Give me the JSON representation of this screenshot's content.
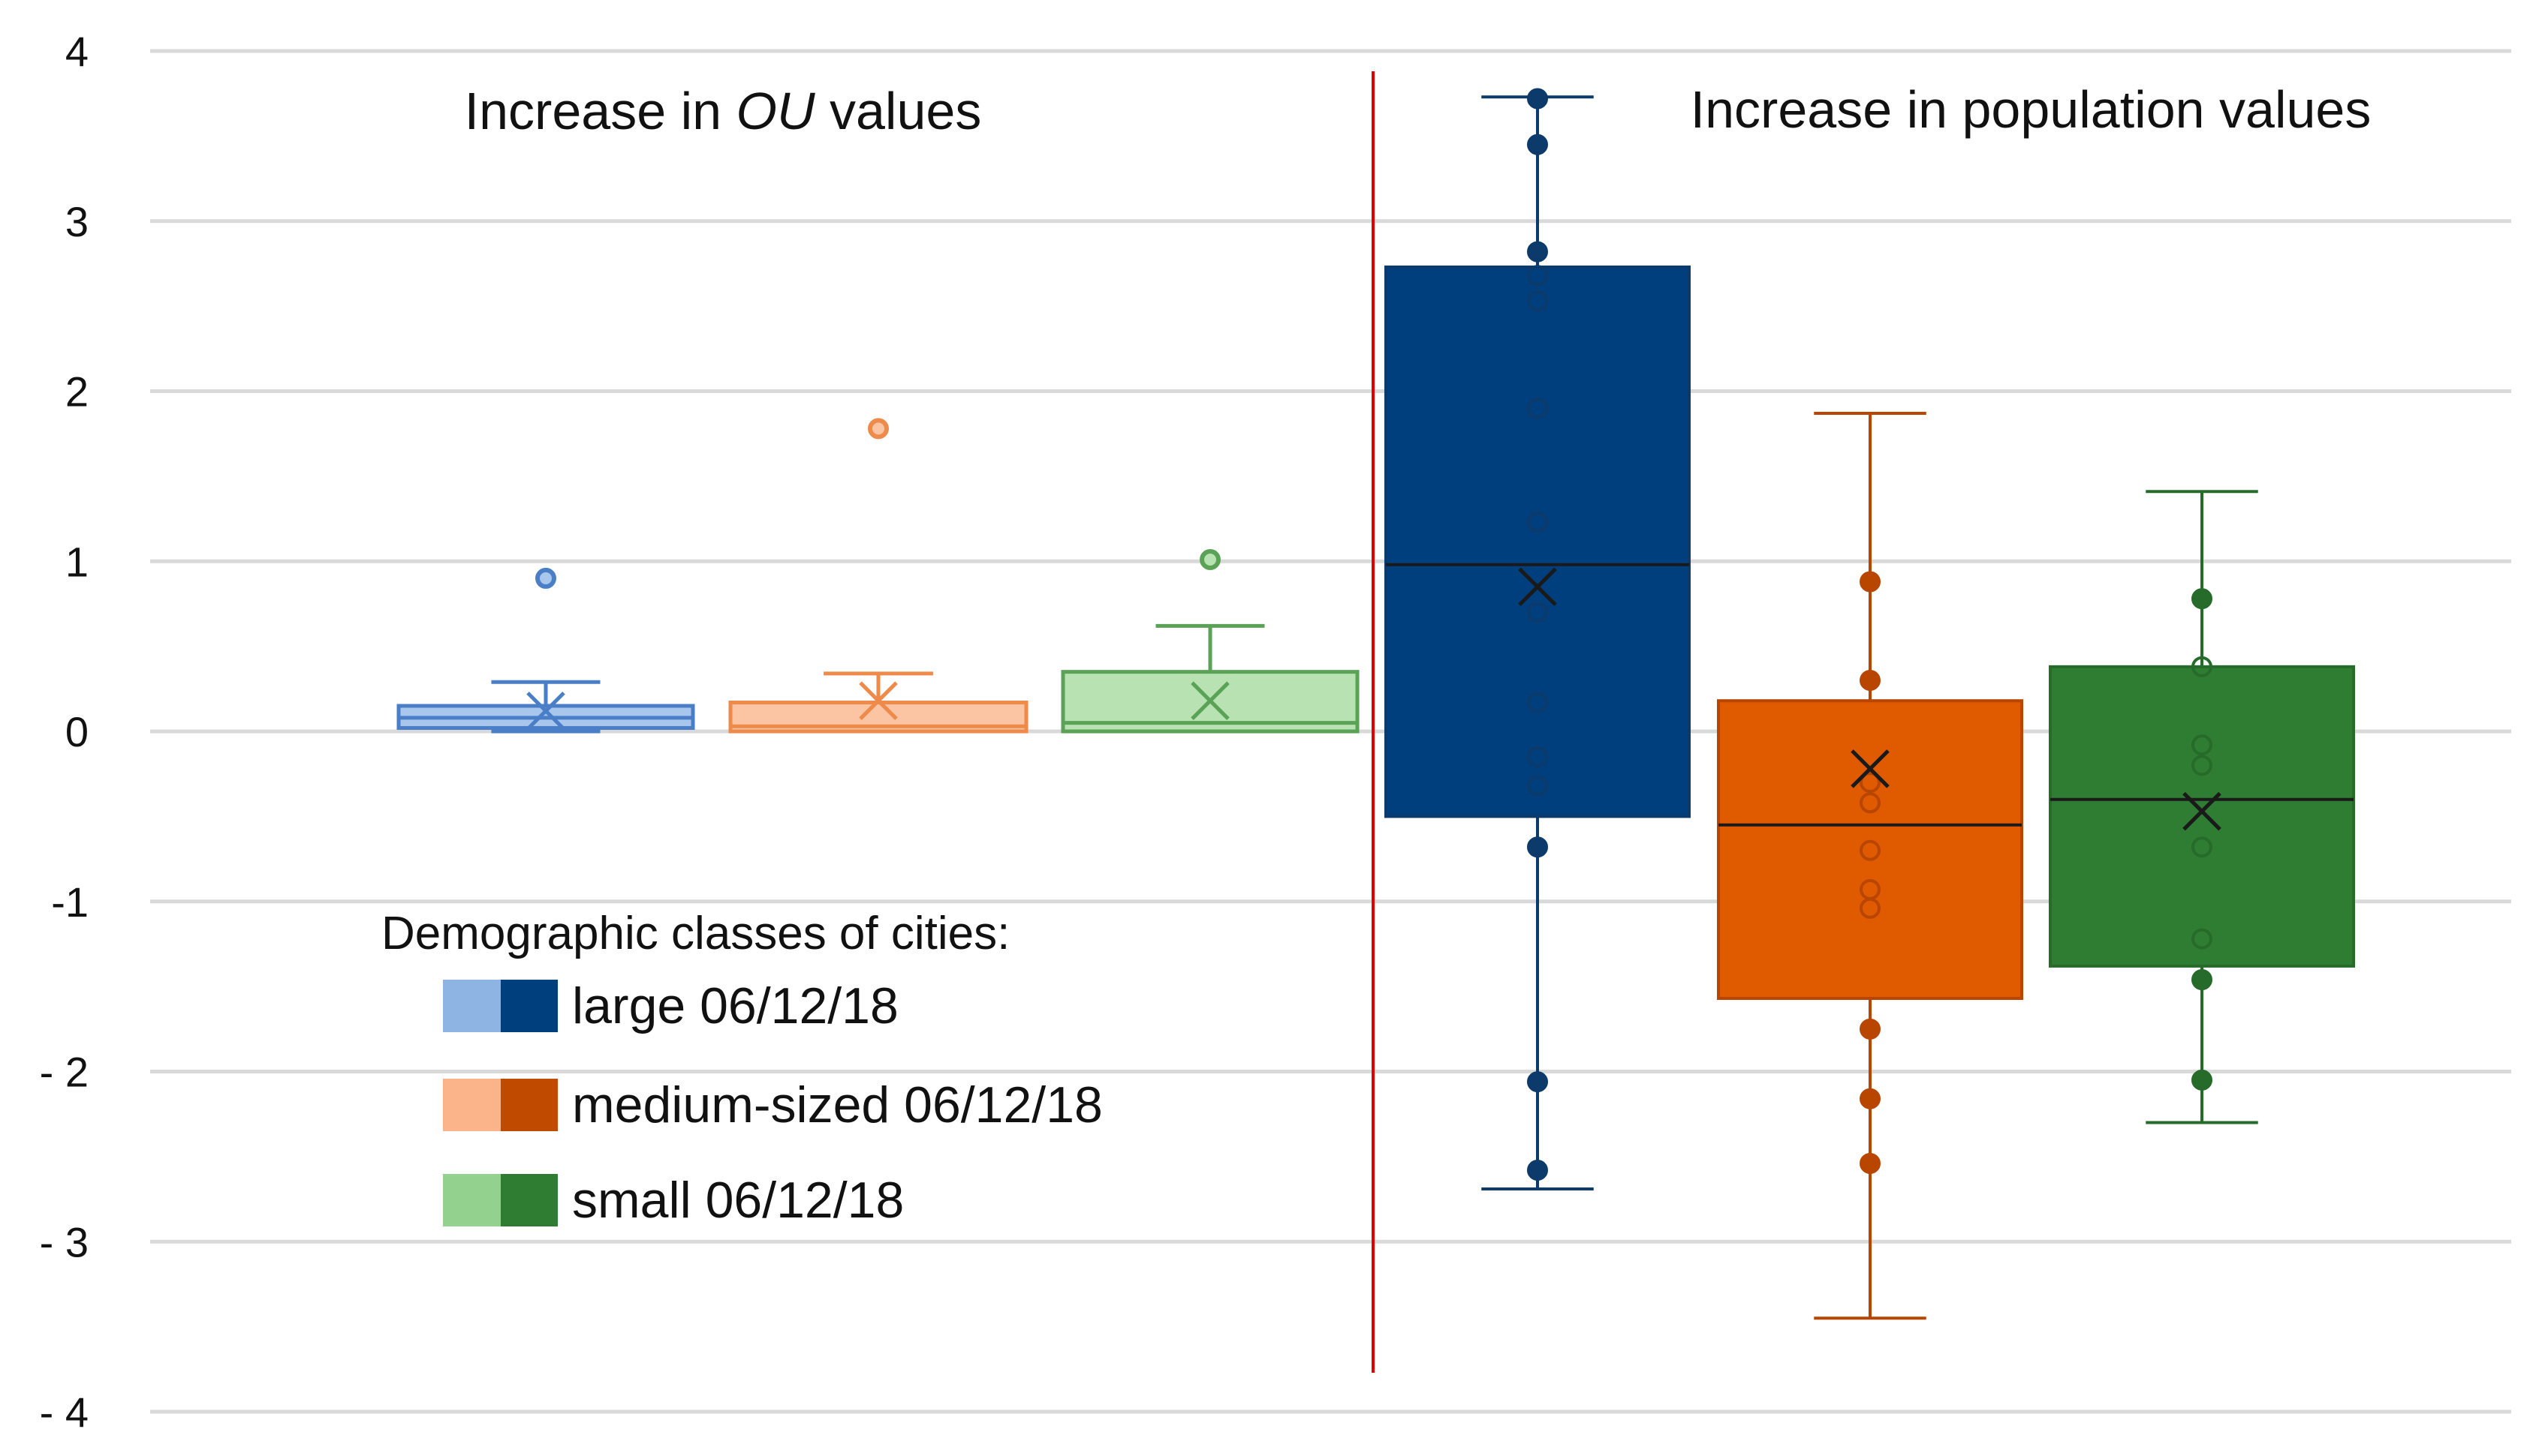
{
  "chart_data": {
    "type": "box",
    "ylim": [
      -4,
      4
    ],
    "yticks": [
      {
        "value": 4,
        "label": "4"
      },
      {
        "value": 3,
        "label": "3"
      },
      {
        "value": 2,
        "label": "2"
      },
      {
        "value": 1,
        "label": "1"
      },
      {
        "value": 0,
        "label": "0"
      },
      {
        "value": -1,
        "label": "-1"
      },
      {
        "value": -2,
        "label": "- 2"
      },
      {
        "value": -3,
        "label": "- 3"
      },
      {
        "value": -4,
        "label": "- 4"
      }
    ],
    "grid": true,
    "panels": [
      {
        "id": "ou",
        "title_prefix": "Increase in ",
        "title_italic": "OU",
        "title_suffix": " values"
      },
      {
        "id": "population",
        "title": "Increase in population values"
      }
    ],
    "legend": {
      "title": "Demographic classes of cities:",
      "position": "lower-left",
      "items": [
        {
          "label": "large 06/12/18",
          "light_color": "#8eb4e3",
          "dark_color": "#003f7d"
        },
        {
          "label": "medium-sized 06/12/18",
          "light_color": "#fbb48a",
          "dark_color": "#c04a00"
        },
        {
          "label": "small 06/12/18",
          "light_color": "#93d18f",
          "dark_color": "#2e7d32"
        }
      ]
    },
    "series": [
      {
        "name": "large",
        "panel": "ou",
        "fill": "#a9c6ec",
        "stroke": "#4a7fc8",
        "whisker_low": 0.0,
        "q1": 0.02,
        "median": 0.08,
        "q3": 0.15,
        "whisker_high": 0.29,
        "mean": 0.12,
        "outliers": [
          0.9
        ],
        "points": []
      },
      {
        "name": "medium-sized",
        "panel": "ou",
        "fill": "#fbc4a2",
        "stroke": "#ee8a4a",
        "whisker_low": 0.0,
        "q1": 0.0,
        "median": 0.03,
        "q3": 0.17,
        "whisker_high": 0.34,
        "mean": 0.18,
        "outliers": [
          1.78
        ],
        "points": []
      },
      {
        "name": "small",
        "panel": "ou",
        "fill": "#b8e2b2",
        "stroke": "#5aa356",
        "whisker_low": 0.0,
        "q1": 0.0,
        "median": 0.05,
        "q3": 0.35,
        "whisker_high": 0.62,
        "mean": 0.18,
        "outliers": [
          1.01
        ],
        "points": []
      },
      {
        "name": "large",
        "panel": "population",
        "fill": "#003f7d",
        "stroke": "#0b3a6b",
        "whisker_low": -2.69,
        "q1": -0.5,
        "median": 0.98,
        "q3": 2.73,
        "whisker_high": 3.73,
        "mean": 0.85,
        "outliers": [],
        "points": [
          3.72,
          3.45,
          2.82,
          2.68,
          2.53,
          1.9,
          1.23,
          0.7,
          0.17,
          -0.15,
          -0.32,
          -0.68,
          -2.06,
          -2.58
        ]
      },
      {
        "name": "medium-sized",
        "panel": "population",
        "fill": "#e05a00",
        "stroke": "#b84600",
        "whisker_low": -3.45,
        "q1": -1.57,
        "median": -0.55,
        "q3": 0.18,
        "whisker_high": 1.87,
        "mean": -0.22,
        "outliers": [],
        "points": [
          0.88,
          0.3,
          -0.3,
          -0.42,
          -0.7,
          -0.93,
          -1.04,
          -1.75,
          -2.16,
          -2.54
        ]
      },
      {
        "name": "small",
        "panel": "population",
        "fill": "#2e7d32",
        "stroke": "#276b2a",
        "whisker_low": -2.3,
        "q1": -1.38,
        "median": -0.4,
        "q3": 0.38,
        "whisker_high": 1.41,
        "mean": -0.47,
        "outliers": [],
        "points": [
          0.78,
          0.38,
          -0.08,
          -0.2,
          -0.68,
          -1.22,
          -1.46,
          -2.05
        ]
      }
    ]
  }
}
